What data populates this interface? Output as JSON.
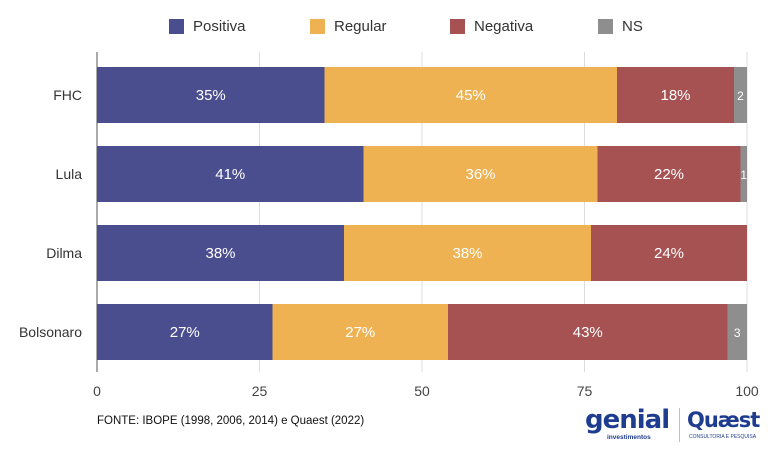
{
  "chart_data": {
    "type": "bar",
    "orientation": "horizontal",
    "stacked": true,
    "title": "",
    "xlabel": "",
    "ylabel": "",
    "xlim": [
      0,
      100
    ],
    "xticks": [
      0,
      25,
      50,
      75,
      100
    ],
    "grid": true,
    "legend_position": "top",
    "categories": [
      "FHC",
      "Lula",
      "Dilma",
      "Bolsonaro"
    ],
    "series": [
      {
        "name": "Positiva",
        "color": "#4a4e8f",
        "values": [
          35,
          41,
          38,
          27
        ],
        "labels": [
          "35%",
          "41%",
          "38%",
          "27%"
        ]
      },
      {
        "name": "Regular",
        "color": "#efb252",
        "values": [
          45,
          36,
          38,
          27
        ],
        "labels": [
          "45%",
          "36%",
          "38%",
          "27%"
        ]
      },
      {
        "name": "Negativa",
        "color": "#a65253",
        "values": [
          18,
          22,
          24,
          43
        ],
        "labels": [
          "18%",
          "22%",
          "24%",
          "43%"
        ]
      },
      {
        "name": "NS",
        "color": "#8e8e8e",
        "values": [
          2,
          1,
          0,
          3
        ],
        "labels": [
          "2",
          "1",
          "",
          "3"
        ]
      }
    ]
  },
  "footer": {
    "source": "FONTE: IBOPE (1998, 2006, 2014) e Quaest (2022)"
  },
  "logos": {
    "genial": "genial",
    "genial_sub": "investimentos",
    "quaest": "Quæst",
    "quaest_sub": "CONSULTORIA E PESQUISA"
  }
}
